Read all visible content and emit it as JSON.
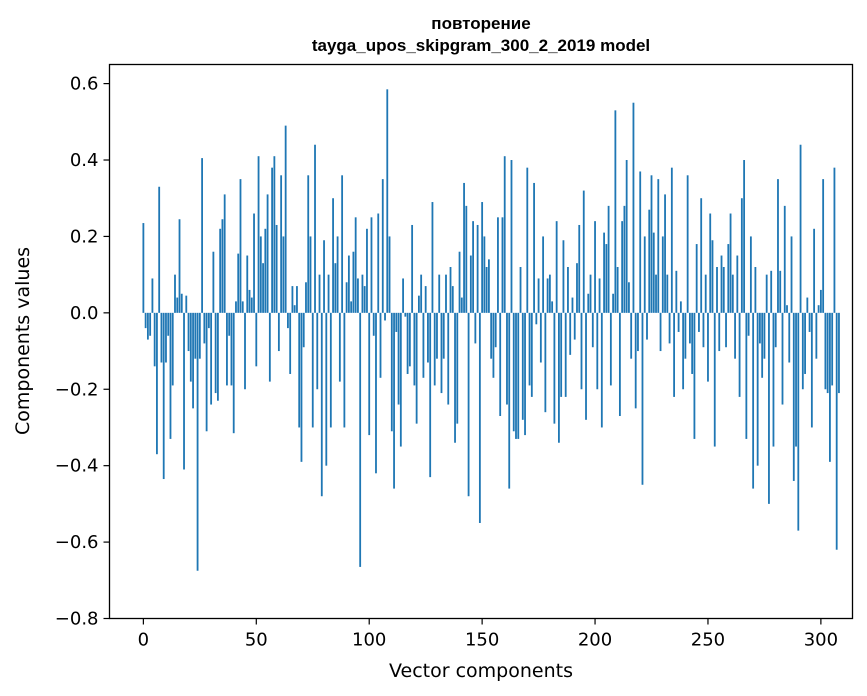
{
  "chart_data": {
    "type": "bar",
    "title": [
      "повторение",
      "tayga_upos_skipgram_300_2_2019 model"
    ],
    "xlabel": "Vector components",
    "ylabel": "Components values",
    "xlim": [
      -15,
      314
    ],
    "ylim": [
      -0.8,
      0.65
    ],
    "xticks": [
      0,
      50,
      100,
      150,
      200,
      250,
      300
    ],
    "yticks": [
      -0.8,
      -0.6,
      -0.4,
      -0.2,
      0.0,
      0.2,
      0.4,
      0.6
    ],
    "xtick_labels": [
      "0",
      "50",
      "100",
      "150",
      "200",
      "250",
      "300"
    ],
    "ytick_labels": [
      "−0.8",
      "−0.6",
      "−0.4",
      "−0.2",
      "0.0",
      "0.2",
      "0.4",
      "0.6"
    ],
    "bar_color": "#1f77b4",
    "grid": false,
    "values": [
      0.235,
      -0.04,
      -0.07,
      -0.06,
      0.09,
      -0.14,
      -0.37,
      0.33,
      -0.13,
      -0.435,
      -0.13,
      -0.06,
      -0.33,
      -0.19,
      0.1,
      0.04,
      0.245,
      0.05,
      -0.41,
      0.045,
      -0.1,
      -0.18,
      -0.25,
      -0.12,
      -0.675,
      -0.12,
      0.405,
      -0.08,
      -0.31,
      -0.04,
      -0.24,
      0.16,
      -0.21,
      -0.23,
      0.22,
      0.245,
      0.31,
      -0.19,
      -0.06,
      -0.19,
      -0.315,
      0.03,
      0.155,
      0.35,
      0.03,
      -0.2,
      0.15,
      0.06,
      0.04,
      0.26,
      -0.14,
      0.41,
      0.2,
      0.13,
      0.22,
      0.31,
      -0.18,
      0.38,
      0.41,
      0.23,
      -0.1,
      0.36,
      0.2,
      0.49,
      -0.04,
      -0.16,
      0.07,
      0.02,
      0.07,
      -0.3,
      -0.39,
      -0.09,
      0.08,
      0.36,
      0.2,
      -0.3,
      0.44,
      -0.2,
      0.1,
      -0.48,
      0.19,
      -0.4,
      0.1,
      -0.3,
      0.3,
      0.13,
      0.2,
      -0.18,
      0.36,
      -0.3,
      0.08,
      0.15,
      0.03,
      0.16,
      0.25,
      0.09,
      -0.665,
      0.1,
      0.07,
      0.22,
      -0.32,
      0.25,
      -0.06,
      -0.42,
      0.26,
      -0.17,
      0.35,
      -0.02,
      0.585,
      0.2,
      -0.31,
      -0.46,
      -0.05,
      -0.24,
      -0.35,
      0.09,
      -0.01,
      -0.16,
      -0.14,
      0.23,
      -0.19,
      -0.29,
      0.045,
      0.1,
      -0.17,
      0.07,
      -0.13,
      -0.43,
      0.29,
      -0.19,
      -0.12,
      0.1,
      -0.21,
      -0.12,
      0.1,
      -0.24,
      0.12,
      0.07,
      -0.34,
      -0.29,
      0.16,
      0.04,
      0.34,
      0.28,
      -0.48,
      0.15,
      0.24,
      -0.08,
      0.23,
      -0.55,
      0.29,
      0.2,
      0.12,
      0.14,
      -0.12,
      -0.17,
      -0.09,
      0.25,
      -0.27,
      0.25,
      0.41,
      -0.24,
      -0.46,
      0.4,
      -0.31,
      -0.33,
      -0.33,
      0.12,
      -0.28,
      -0.32,
      0.38,
      -0.19,
      -0.22,
      0.34,
      -0.03,
      0.09,
      -0.13,
      0.2,
      -0.26,
      0.09,
      0.1,
      0.03,
      -0.29,
      0.24,
      -0.34,
      -0.22,
      0.19,
      -0.22,
      0.12,
      -0.11,
      0.04,
      -0.07,
      0.13,
      0.23,
      -0.2,
      0.32,
      -0.28,
      0.05,
      0.1,
      -0.09,
      0.24,
      -0.2,
      0.09,
      -0.3,
      0.21,
      0.18,
      0.28,
      -0.19,
      0.05,
      0.53,
      0.12,
      -0.27,
      0.24,
      0.28,
      0.4,
      0.08,
      -0.12,
      0.55,
      -0.25,
      -0.1,
      0.37,
      -0.45,
      0.2,
      -0.07,
      0.27,
      0.36,
      0.21,
      0.1,
      0.35,
      -0.1,
      0.2,
      0.31,
      0.1,
      -0.08,
      0.38,
      -0.22,
      0.11,
      -0.05,
      0.03,
      -0.2,
      -0.12,
      0.36,
      -0.08,
      -0.16,
      -0.33,
      0.18,
      -0.05,
      0.3,
      -0.09,
      0.1,
      -0.18,
      0.26,
      0.19,
      -0.35,
      0.12,
      -0.1,
      0.15,
      0.12,
      -0.09,
      0.18,
      0.26,
      0.1,
      -0.12,
      0.15,
      -0.22,
      0.3,
      0.4,
      -0.33,
      -0.06,
      0.2,
      -0.46,
      0.12,
      -0.4,
      -0.08,
      -0.17,
      -0.12,
      0.1,
      -0.5,
      0.11,
      -0.35,
      -0.09,
      0.35,
      0.11,
      -0.24,
      0.28,
      0.02,
      -0.13,
      0.2,
      -0.44,
      -0.35,
      -0.57,
      0.44,
      -0.2,
      -0.16,
      0.04,
      -0.05,
      -0.3,
      0.22,
      -0.12,
      0.02,
      0.06,
      0.35,
      -0.2,
      -0.21,
      -0.39,
      -0.19,
      0.38,
      -0.62,
      -0.21
    ]
  }
}
